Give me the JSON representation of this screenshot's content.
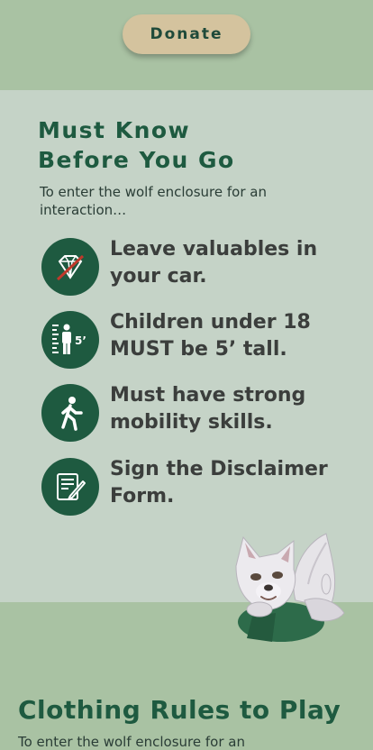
{
  "header": {
    "donate_label": "Donate"
  },
  "must_know": {
    "title_line1": "Must Know",
    "title_line2": "Before You Go",
    "intro": "To enter the wolf enclosure for an interaction…",
    "rules": [
      {
        "icon": "no-valuables-icon",
        "text": "Leave valuables in your car."
      },
      {
        "icon": "height-requirement-icon",
        "text": "Children under 18 MUST be 5’ tall.",
        "icon_label": "5’"
      },
      {
        "icon": "walking-person-icon",
        "text": "Must have strong mobility skills."
      },
      {
        "icon": "form-pencil-icon",
        "text": "Sign the Disclaimer Form."
      }
    ]
  },
  "clothing": {
    "title": "Clothing Rules to Play",
    "intro": "To enter the wolf enclosure for an"
  },
  "colors": {
    "brand_green": "#1e5a40",
    "sage": "#a9c2a3",
    "panel": "#c5d3c7",
    "donate_bg": "#d4c39e",
    "strike_red": "#c0392b"
  }
}
